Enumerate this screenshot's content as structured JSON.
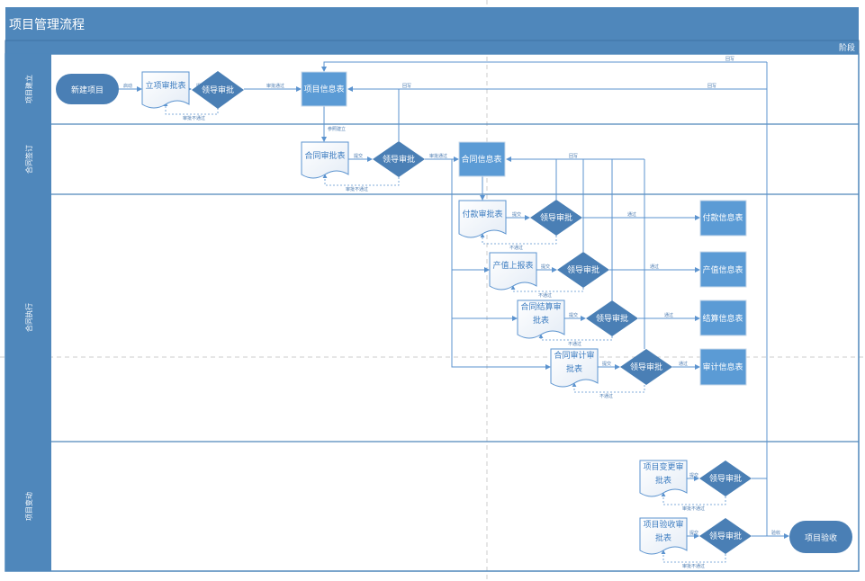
{
  "title": "项目管理流程",
  "phase_label": "阶段",
  "lanes": [
    "项目建立",
    "合同签订",
    "合同执行",
    "项目变动"
  ],
  "nodes": {
    "start": "新建项目",
    "lixiang": "立项审批表",
    "approve": "领导审批",
    "xiangmu_info": "项目信息表",
    "hetong_approval": "合同审批表",
    "hetong_info": "合同信息表",
    "fukuan_approval": "付款审批表",
    "fukuan_info": "付款信息表",
    "chanzhi_report": "产值上报表",
    "chanzhi_info": "产值信息表",
    "jiesuan_approval_1": "合同结算审",
    "jiesuan_approval_2": "批表",
    "jiesuan_info": "结算信息表",
    "shenji_approval_1": "合同审计审",
    "shenji_approval_2": "批表",
    "shenji_info": "审计信息表",
    "biangeng_approval_1": "项目变更审",
    "biangeng_approval_2": "批表",
    "yanshou_approval_1": "项目验收审",
    "yanshou_approval_2": "批表",
    "end": "项目验收"
  },
  "edges": {
    "start": "启动",
    "submit": "提交",
    "approved": "审批通过",
    "rejected": "审批不通过",
    "reject_short": "不通过",
    "pass": "通过",
    "writeback": "回写",
    "reference": "参照建立",
    "acceptance": "验收"
  },
  "colors": {
    "header": "#4f87bb",
    "node": "#5b9bd5",
    "diamond": "#4a7fb5",
    "line": "#5b93cf"
  }
}
